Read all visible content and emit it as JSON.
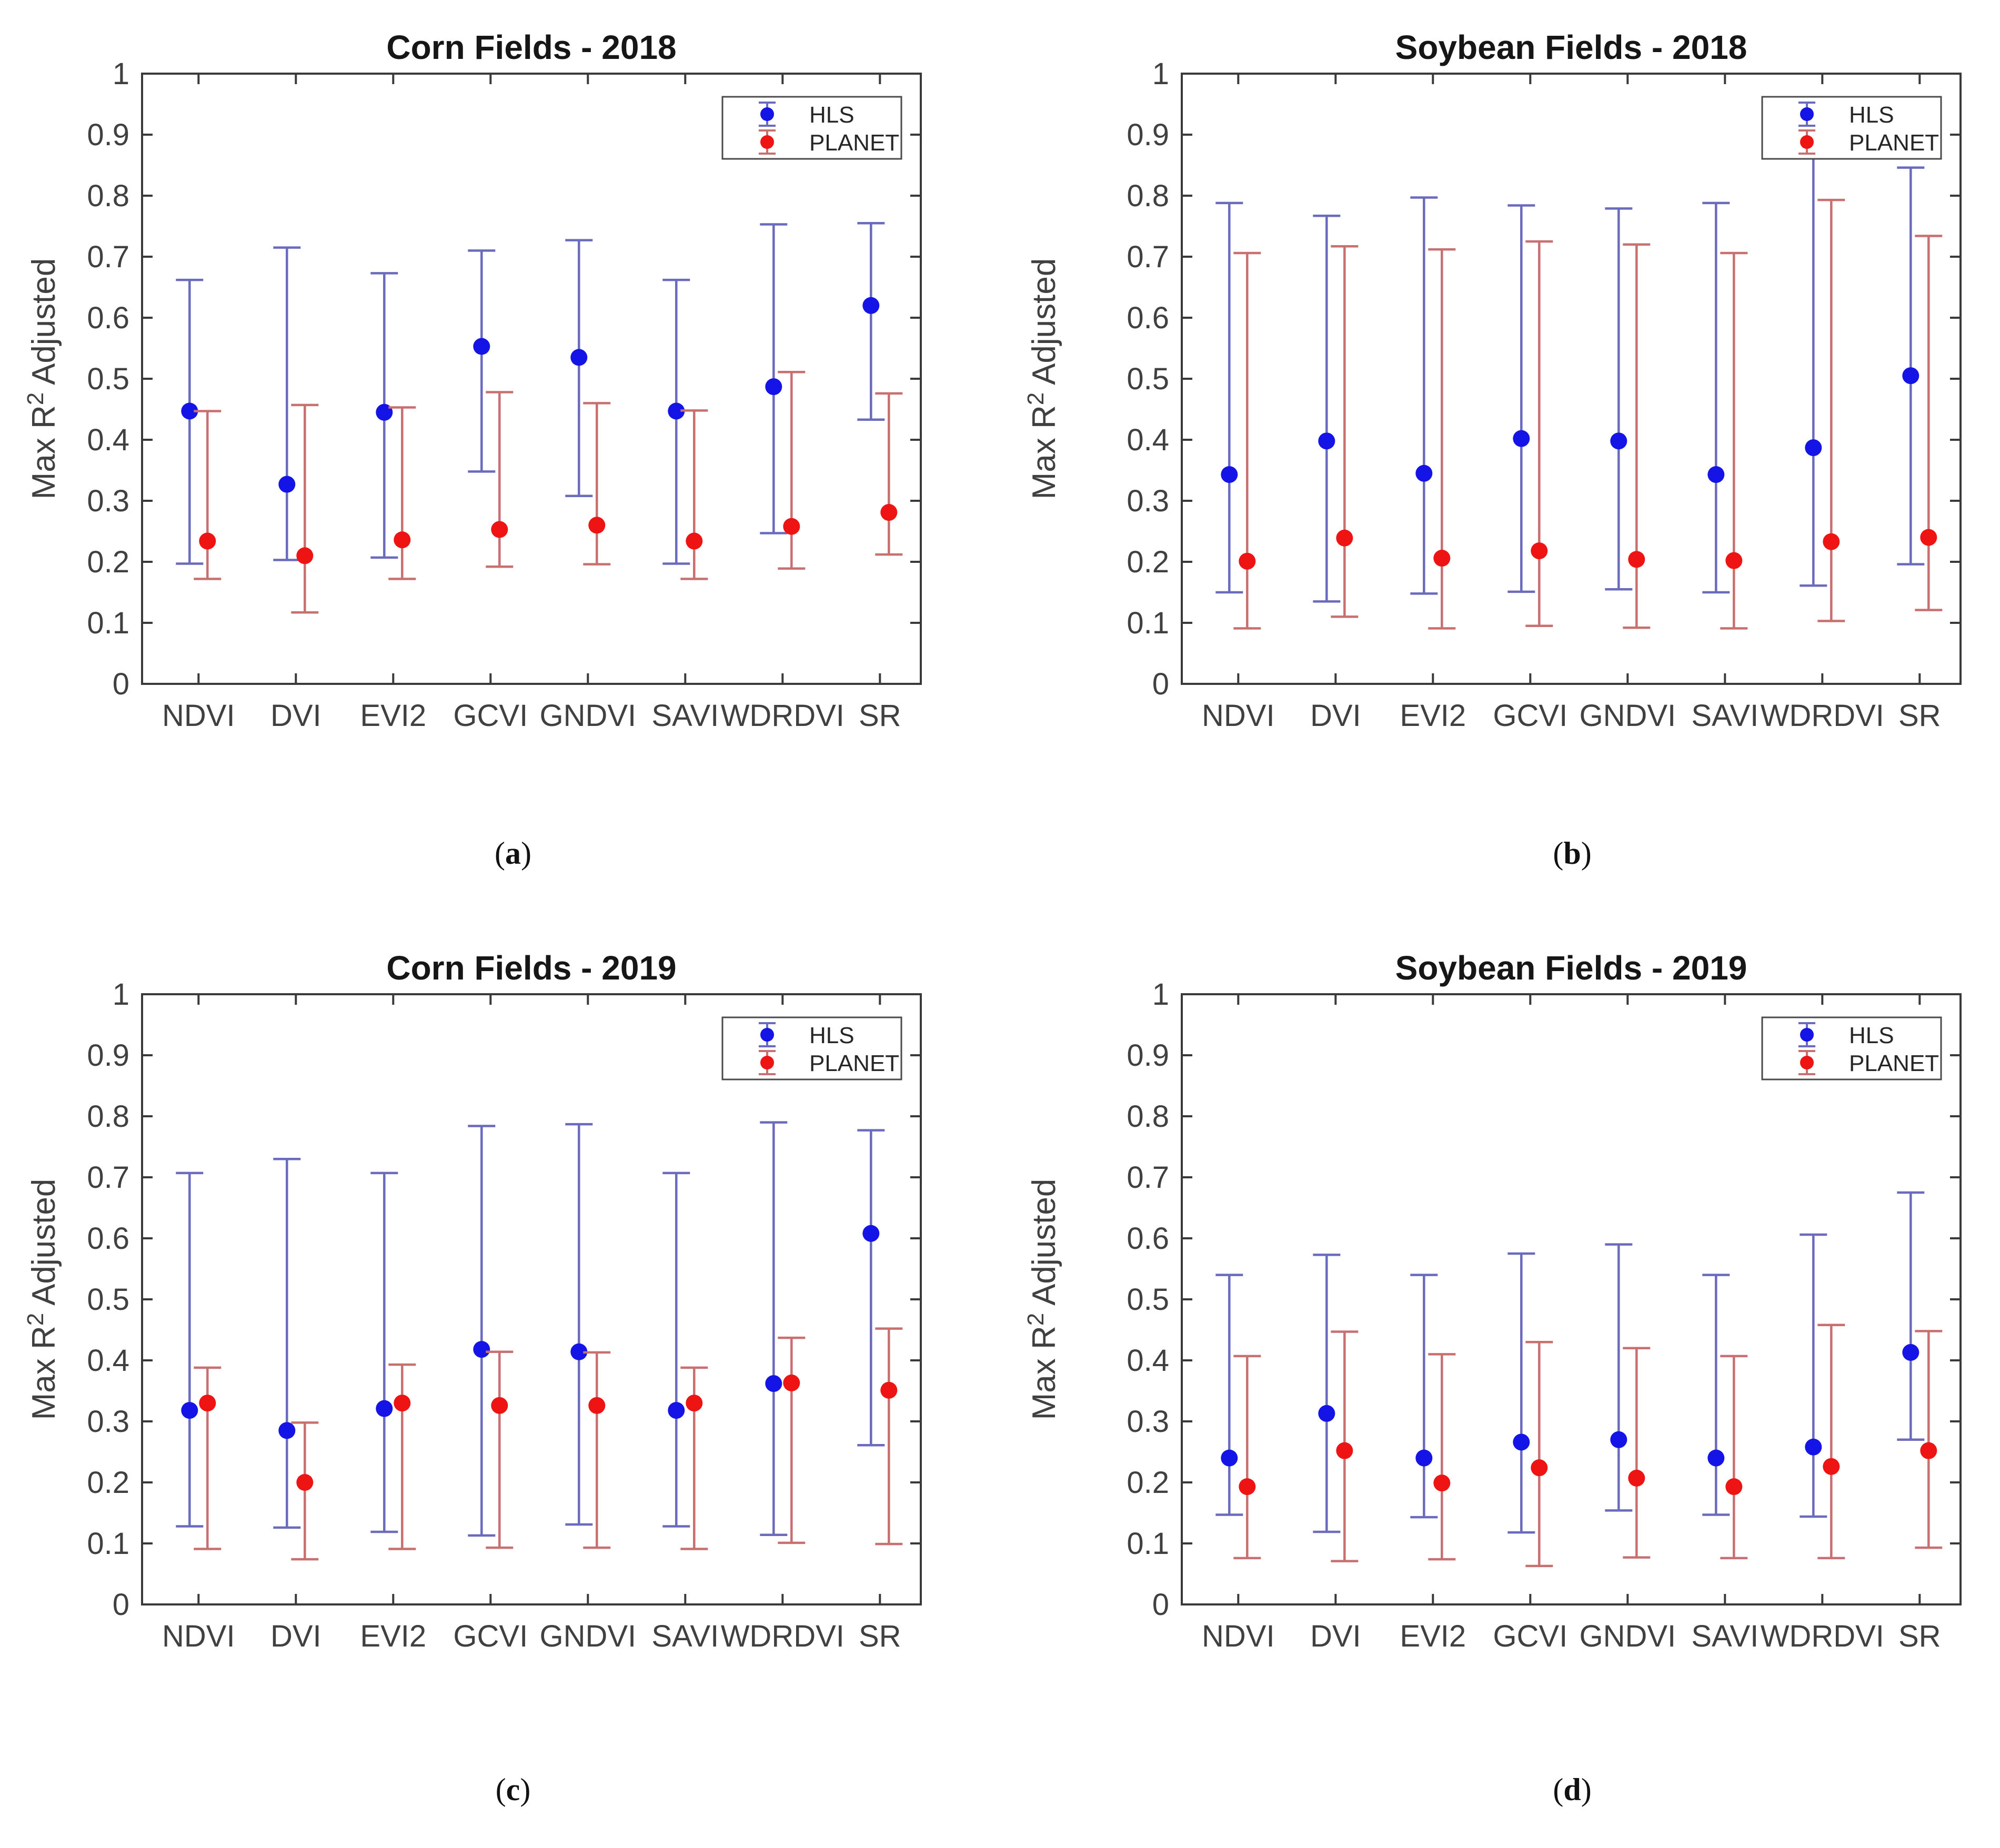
{
  "page": {
    "background": "#ffffff"
  },
  "style": {
    "hls_marker_color": "#1414e6",
    "hls_bar_color": "#6b6bbd",
    "planet_marker_color": "#ee1414",
    "planet_bar_color": "#c87070",
    "axis_color": "#3a3a3a",
    "tick_label_color": "#404040",
    "title_color": "#161616",
    "legend_border_color": "#4a4a4a",
    "legend_bg": "#ffffff",
    "legend_text_color": "#262626"
  },
  "captions": {
    "open": "(",
    "close": ")"
  },
  "chart_data": [
    {
      "type": "scatter",
      "subtype": "errorbar",
      "title": "Corn Fields - 2018",
      "caption_letter": "a",
      "ylabel": {
        "prefix": "Max R",
        "sup": "2",
        "suffix": " Adjusted"
      },
      "ylim": [
        0,
        1
      ],
      "ytick_labels": [
        "0",
        "0.1",
        "0.2",
        "0.3",
        "0.4",
        "0.5",
        "0.6",
        "0.7",
        "0.8",
        "0.9",
        "1"
      ],
      "grid": false,
      "legend_position": "top-right",
      "categories": [
        "NDVI",
        "DVI",
        "EVI2",
        "GCVI",
        "GNDVI",
        "SAVI",
        "WDRDVI",
        "SR"
      ],
      "series": [
        {
          "name": "HLS",
          "color_key": "hls",
          "values": [
            0.447,
            0.327,
            0.445,
            0.553,
            0.535,
            0.447,
            0.487,
            0.62
          ],
          "lower": [
            0.197,
            0.203,
            0.207,
            0.348,
            0.308,
            0.197,
            0.247,
            0.433
          ],
          "upper": [
            0.662,
            0.715,
            0.673,
            0.71,
            0.727,
            0.662,
            0.753,
            0.755
          ]
        },
        {
          "name": "PLANET",
          "color_key": "planet",
          "values": [
            0.234,
            0.21,
            0.236,
            0.253,
            0.26,
            0.234,
            0.258,
            0.281
          ],
          "lower": [
            0.172,
            0.117,
            0.172,
            0.192,
            0.196,
            0.172,
            0.189,
            0.212
          ],
          "upper": [
            0.447,
            0.457,
            0.453,
            0.478,
            0.46,
            0.448,
            0.511,
            0.476
          ]
        }
      ]
    },
    {
      "type": "scatter",
      "subtype": "errorbar",
      "title": "Soybean Fields - 2018",
      "caption_letter": "b",
      "ylabel": {
        "prefix": "Max R",
        "sup": "2",
        "suffix": " Adjusted"
      },
      "ylim": [
        0,
        1
      ],
      "ytick_labels": [
        "0",
        "0.1",
        "0.2",
        "0.3",
        "0.4",
        "0.5",
        "0.6",
        "0.7",
        "0.8",
        "0.9",
        "1"
      ],
      "grid": false,
      "legend_position": "top-right",
      "categories": [
        "NDVI",
        "DVI",
        "EVI2",
        "GCVI",
        "GNDVI",
        "SAVI",
        "WDRDVI",
        "SR"
      ],
      "series": [
        {
          "name": "HLS",
          "color_key": "hls",
          "values": [
            0.343,
            0.398,
            0.345,
            0.402,
            0.398,
            0.343,
            0.387,
            0.505
          ],
          "lower": [
            0.15,
            0.135,
            0.148,
            0.151,
            0.155,
            0.15,
            0.161,
            0.196
          ],
          "upper": [
            0.788,
            0.767,
            0.797,
            0.784,
            0.779,
            0.788,
            0.88,
            0.846
          ]
        },
        {
          "name": "PLANET",
          "color_key": "planet",
          "values": [
            0.201,
            0.239,
            0.206,
            0.218,
            0.204,
            0.202,
            0.233,
            0.24
          ],
          "lower": [
            0.091,
            0.11,
            0.091,
            0.095,
            0.092,
            0.091,
            0.103,
            0.121
          ],
          "upper": [
            0.706,
            0.717,
            0.712,
            0.725,
            0.72,
            0.706,
            0.793,
            0.734
          ]
        }
      ]
    },
    {
      "type": "scatter",
      "subtype": "errorbar",
      "title": "Corn Fields - 2019",
      "caption_letter": "c",
      "ylabel": {
        "prefix": "Max R",
        "sup": "2",
        "suffix": " Adjusted"
      },
      "ylim": [
        0,
        1
      ],
      "ytick_labels": [
        "0",
        "0.1",
        "0.2",
        "0.3",
        "0.4",
        "0.5",
        "0.6",
        "0.7",
        "0.8",
        "0.9",
        "1"
      ],
      "grid": false,
      "legend_position": "top-right",
      "categories": [
        "NDVI",
        "DVI",
        "EVI2",
        "GCVI",
        "GNDVI",
        "SAVI",
        "WDRDVI",
        "SR"
      ],
      "series": [
        {
          "name": "HLS",
          "color_key": "hls",
          "values": [
            0.318,
            0.285,
            0.321,
            0.418,
            0.414,
            0.318,
            0.362,
            0.608
          ],
          "lower": [
            0.128,
            0.126,
            0.119,
            0.113,
            0.131,
            0.128,
            0.114,
            0.261
          ],
          "upper": [
            0.707,
            0.73,
            0.707,
            0.784,
            0.787,
            0.707,
            0.79,
            0.777
          ]
        },
        {
          "name": "PLANET",
          "color_key": "planet",
          "values": [
            0.33,
            0.2,
            0.33,
            0.326,
            0.326,
            0.33,
            0.363,
            0.351
          ],
          "lower": [
            0.091,
            0.074,
            0.091,
            0.093,
            0.093,
            0.091,
            0.101,
            0.099
          ],
          "upper": [
            0.388,
            0.298,
            0.393,
            0.414,
            0.413,
            0.388,
            0.437,
            0.452
          ]
        }
      ]
    },
    {
      "type": "scatter",
      "subtype": "errorbar",
      "title": "Soybean Fields - 2019",
      "caption_letter": "d",
      "ylabel": {
        "prefix": "Max R",
        "sup": "2",
        "suffix": " Adjusted"
      },
      "ylim": [
        0,
        1
      ],
      "ytick_labels": [
        "0",
        "0.1",
        "0.2",
        "0.3",
        "0.4",
        "0.5",
        "0.6",
        "0.7",
        "0.8",
        "0.9",
        "1"
      ],
      "grid": false,
      "legend_position": "top-right",
      "categories": [
        "NDVI",
        "DVI",
        "EVI2",
        "GCVI",
        "GNDVI",
        "SAVI",
        "WDRDVI",
        "SR"
      ],
      "series": [
        {
          "name": "HLS",
          "color_key": "hls",
          "values": [
            0.24,
            0.313,
            0.24,
            0.266,
            0.27,
            0.24,
            0.258,
            0.413
          ],
          "lower": [
            0.147,
            0.119,
            0.143,
            0.118,
            0.154,
            0.147,
            0.144,
            0.27
          ],
          "upper": [
            0.54,
            0.573,
            0.54,
            0.575,
            0.59,
            0.54,
            0.606,
            0.675
          ]
        },
        {
          "name": "PLANET",
          "color_key": "planet",
          "values": [
            0.193,
            0.252,
            0.199,
            0.224,
            0.207,
            0.193,
            0.226,
            0.252
          ],
          "lower": [
            0.076,
            0.071,
            0.074,
            0.063,
            0.077,
            0.076,
            0.076,
            0.093
          ],
          "upper": [
            0.407,
            0.447,
            0.41,
            0.43,
            0.42,
            0.407,
            0.458,
            0.448
          ]
        }
      ]
    }
  ]
}
